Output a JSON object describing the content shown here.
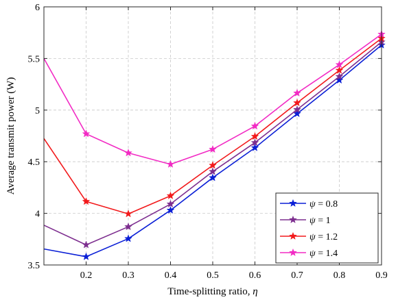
{
  "chart_data": {
    "type": "line",
    "xlabel_text": "Time-splitting ratio, ",
    "xlabel_symbol": "η",
    "ylabel": "Average transmit power (W)",
    "xlim": [
      0.1,
      0.9
    ],
    "ylim": [
      3.5,
      6.0
    ],
    "x_ticks": [
      0.2,
      0.3,
      0.4,
      0.5,
      0.6,
      0.7,
      0.8,
      0.9
    ],
    "y_ticks": [
      3.5,
      4,
      4.5,
      5,
      5.5,
      6
    ],
    "x_tick_labels": [
      "0.2",
      "0.3",
      "0.4",
      "0.5",
      "0.6",
      "0.7",
      "0.8",
      "0.9"
    ],
    "y_tick_labels": [
      "3.5",
      "4",
      "4.5",
      "5",
      "5.5",
      "6"
    ],
    "grid": true,
    "legend_position": "bottom-right",
    "x": [
      0.1,
      0.2,
      0.3,
      0.4,
      0.5,
      0.6,
      0.7,
      0.8,
      0.9
    ],
    "series": [
      {
        "name_symbol": "ψ",
        "name_value": " = 0.8",
        "color": "#0a1fd6",
        "marker_x": [
          0.2,
          0.3,
          0.4,
          0.5,
          0.6,
          0.7,
          0.8,
          0.9
        ],
        "values": [
          3.655,
          3.58,
          3.755,
          4.03,
          4.345,
          4.635,
          4.965,
          5.29,
          5.63
        ]
      },
      {
        "name_symbol": "ψ",
        "name_value": " = 1",
        "color": "#7d2e8f",
        "marker_x": [
          0.2,
          0.3,
          0.4,
          0.5,
          0.6,
          0.7,
          0.8,
          0.9
        ],
        "values": [
          3.885,
          3.695,
          3.87,
          4.09,
          4.405,
          4.685,
          5.005,
          5.325,
          5.66
        ]
      },
      {
        "name_symbol": "ψ",
        "name_value": " = 1.2",
        "color": "#f2191b",
        "marker_x": [
          0.2,
          0.3,
          0.4,
          0.5,
          0.6,
          0.7,
          0.8,
          0.9
        ],
        "values": [
          4.725,
          4.115,
          3.995,
          4.17,
          4.465,
          4.745,
          5.07,
          5.385,
          5.695
        ]
      },
      {
        "name_symbol": "ψ",
        "name_value": " = 1.4",
        "color": "#f22bc4",
        "marker_x": [
          0.2,
          0.3,
          0.4,
          0.5,
          0.6,
          0.7,
          0.8,
          0.9
        ],
        "values": [
          5.5,
          4.77,
          4.585,
          4.475,
          4.62,
          4.845,
          5.165,
          5.44,
          5.735
        ]
      }
    ]
  }
}
